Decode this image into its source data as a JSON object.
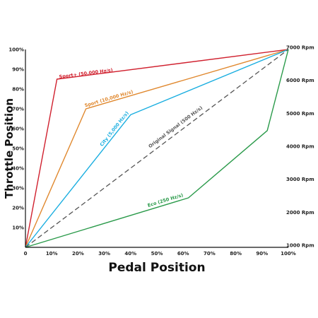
{
  "chart_data": {
    "type": "line",
    "xlabel": "Pedal Position",
    "ylabel": "Throttle Position",
    "xlim": [
      0,
      100
    ],
    "ylim": [
      0,
      100
    ],
    "x_ticks": [
      "0",
      "10%",
      "20%",
      "30%",
      "40%",
      "50%",
      "60%",
      "70%",
      "80%",
      "90%",
      "100%"
    ],
    "y_ticks": [
      "0",
      "10%",
      "20%",
      "30%",
      "40%",
      "50%",
      "60%",
      "70%",
      "80%",
      "90%",
      "100%"
    ],
    "right_axis_ticks": [
      "1000 Rpm",
      "2000 Rpm",
      "3000 Rpm",
      "4000 Rpm",
      "5000 Rpm",
      "6000 Rpm",
      "7000 Rpm"
    ],
    "right_axis_range": [
      1000,
      7000
    ],
    "grid": false,
    "series": [
      {
        "name": "Sport+ (50,000 Hz/s)",
        "color": "#d0202e",
        "dash": false,
        "x": [
          0,
          12,
          100
        ],
        "y": [
          0,
          85,
          100
        ]
      },
      {
        "name": "Sport (10,000 Hz/s)",
        "color": "#e0882e",
        "dash": false,
        "x": [
          0,
          23,
          100
        ],
        "y": [
          0,
          70,
          100
        ]
      },
      {
        "name": "City (5,000 Hz/s)",
        "color": "#1aaee0",
        "dash": false,
        "x": [
          0,
          40,
          100
        ],
        "y": [
          0,
          67,
          100
        ]
      },
      {
        "name": "Original Signal (500 Hz/s)",
        "color": "#555555",
        "dash": true,
        "x": [
          0,
          100
        ],
        "y": [
          0,
          100
        ]
      },
      {
        "name": "Eco (250 Hz/s)",
        "color": "#2a9a4a",
        "dash": false,
        "x": [
          0,
          62,
          92,
          100
        ],
        "y": [
          0,
          25,
          59,
          100
        ]
      }
    ]
  }
}
